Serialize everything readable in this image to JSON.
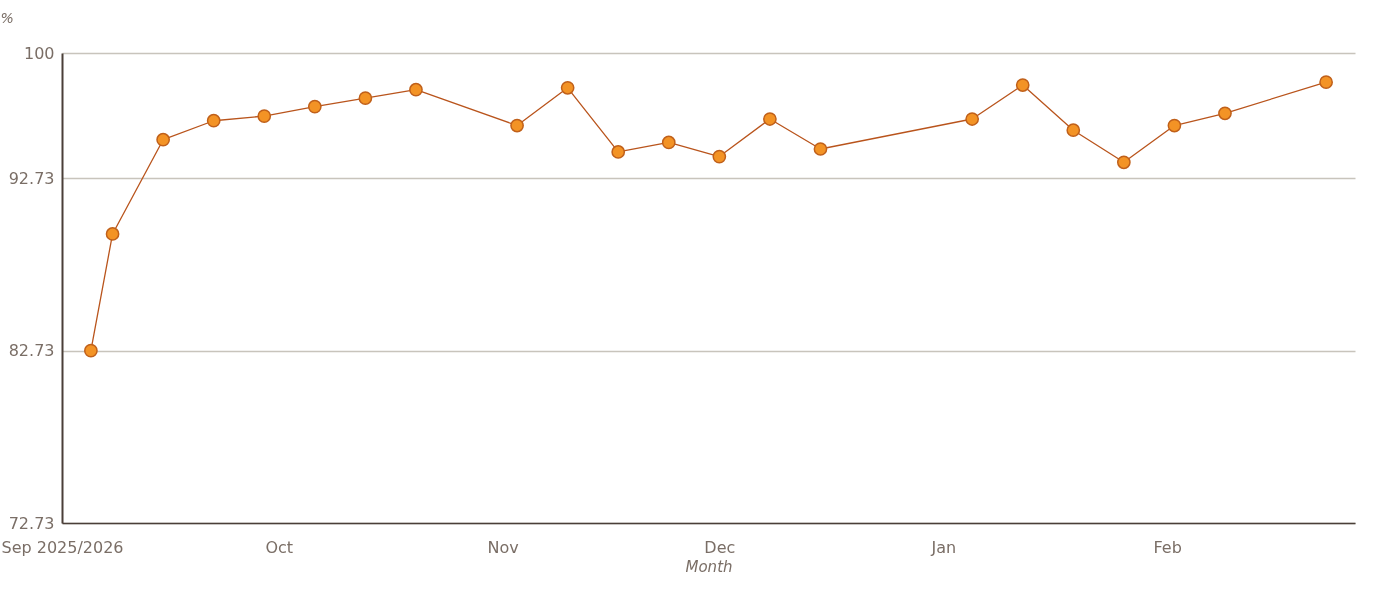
{
  "chart_data": {
    "type": "line",
    "xlabel": "Month",
    "ylabel": "%",
    "x": [
      "2025-09-05",
      "2025-09-08",
      "2025-09-15",
      "2025-09-22",
      "2025-09-29",
      "2025-10-06",
      "2025-10-13",
      "2025-10-20",
      "2025-11-03",
      "2025-11-10",
      "2025-11-17",
      "2025-11-24",
      "2025-12-01",
      "2025-12-08",
      "2025-12-15",
      "2026-01-05",
      "2026-01-12",
      "2026-01-19",
      "2026-01-26",
      "2026-02-02",
      "2026-02-09",
      "2026-02-23"
    ],
    "series": [
      {
        "color": "#f39325",
        "values": [
          82.73,
          89.5,
          94.97,
          96.07,
          96.34,
          96.89,
          97.38,
          97.87,
          95.79,
          97.98,
          94.26,
          94.81,
          93.99,
          96.17,
          94.43,
          96.17,
          98.14,
          95.52,
          93.66,
          95.79,
          96.5,
          98.31
        ]
      }
    ],
    "xlim": [
      "2025-09-01",
      "2026-02-27"
    ],
    "xticks": [
      {
        "value": "2025-09-01",
        "label": "Sep 2025/2026"
      },
      {
        "value": "2025-10-01",
        "label": "Oct"
      },
      {
        "value": "2025-11-01",
        "label": "Nov"
      },
      {
        "value": "2025-12-01",
        "label": "Dec"
      },
      {
        "value": "2026-01-01",
        "label": "Jan"
      },
      {
        "value": "2026-02-01",
        "label": "Feb"
      }
    ],
    "ylim": [
      72.73,
      100
    ],
    "yticks": [
      72.73,
      82.73,
      92.73,
      100
    ],
    "grid": "y",
    "marker": "circle",
    "line_style": "solid"
  }
}
